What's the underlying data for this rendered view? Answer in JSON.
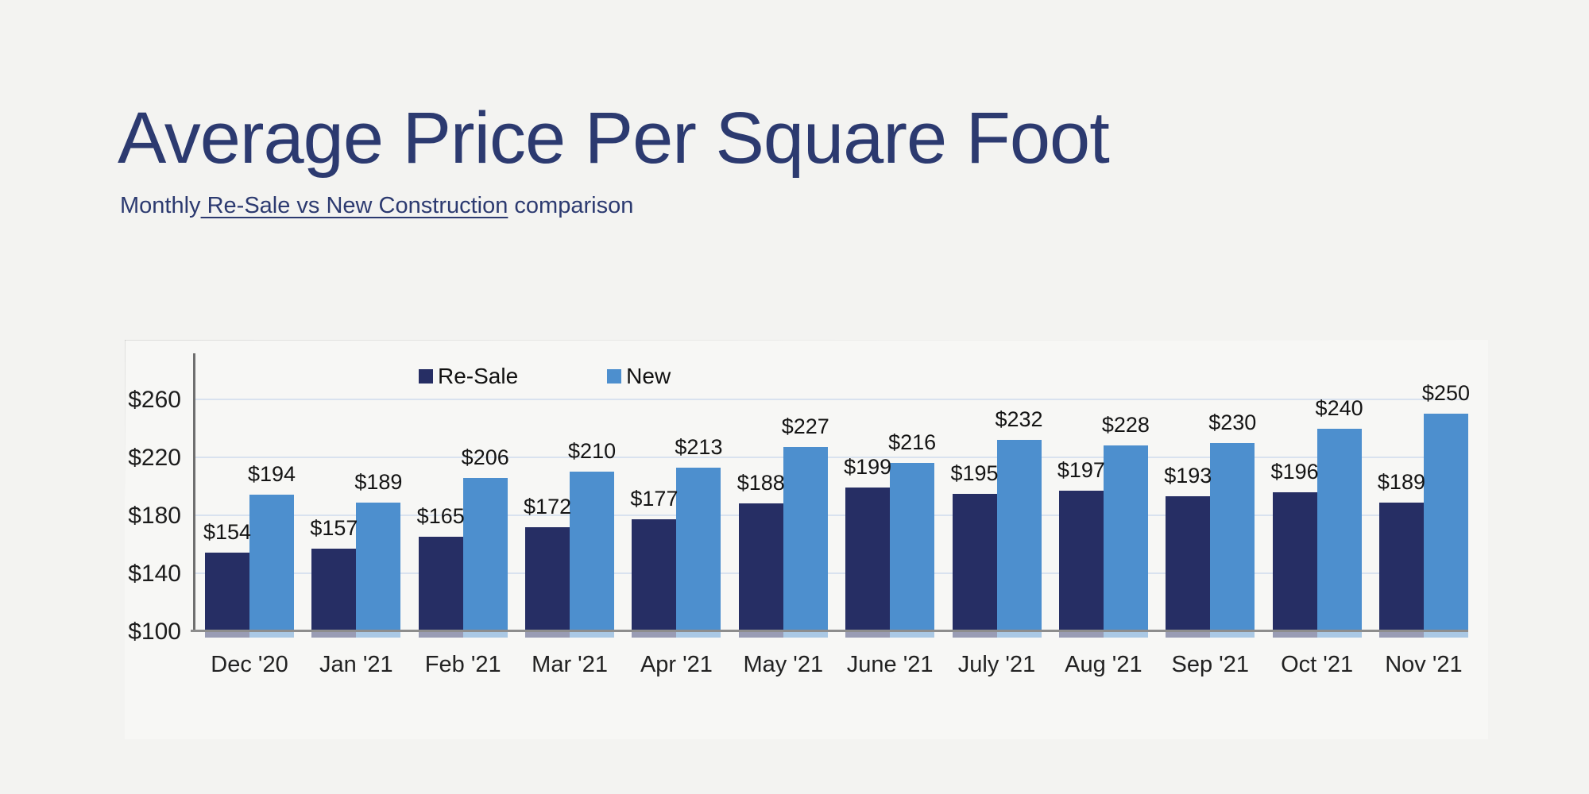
{
  "header": {
    "title": "Average Price Per Square Foot",
    "subtitle_prefix": "Monthly",
    "subtitle_underlined": " Re-Sale vs New Construction",
    "subtitle_suffix": " comparison"
  },
  "chart_data": {
    "type": "bar",
    "title": "Average Price Per Square Foot",
    "subtitle": "Monthly Re-Sale vs New Construction comparison",
    "categories": [
      "Dec '20",
      "Jan '21",
      "Feb '21",
      "Mar '21",
      "Apr '21",
      "May '21",
      "June '21",
      "July '21",
      "Aug '21",
      "Sep '21",
      "Oct '21",
      "Nov '21"
    ],
    "series": [
      {
        "name": "Re-Sale",
        "color": "#262e64",
        "values": [
          154,
          157,
          165,
          172,
          177,
          188,
          199,
          195,
          197,
          193,
          196,
          189
        ]
      },
      {
        "name": "New",
        "color": "#4d8fce",
        "values": [
          194,
          189,
          206,
          210,
          213,
          227,
          216,
          232,
          228,
          230,
          240,
          250
        ]
      }
    ],
    "value_prefix": "$",
    "y_ticks": [
      100,
      140,
      180,
      220,
      260
    ],
    "ylim": [
      100,
      294
    ],
    "xlabel": "",
    "ylabel": "",
    "grid": true,
    "legend_position": "top-center",
    "data_labels": true
  },
  "colors": {
    "page_background": "#f3f3f1",
    "card_background": "#f7f7f5",
    "title_text": "#2c3a70",
    "resale_bar": "#262e64",
    "new_bar": "#4d8fce",
    "gridline": "#d9e2ef",
    "axis_line": "#6f6f6f",
    "label_text": "#141414"
  }
}
